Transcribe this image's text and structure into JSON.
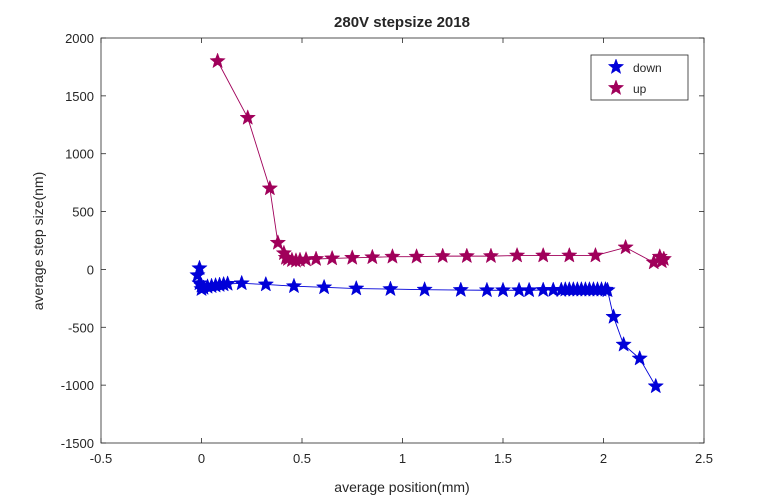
{
  "chart_data": {
    "type": "line",
    "title": "280V stepsize 2018",
    "xlabel": "average position(mm)",
    "ylabel": "average step size(nm)",
    "xlim": [
      -0.5,
      2.5
    ],
    "ylim": [
      -1500,
      2000
    ],
    "xticks": [
      -0.5,
      0,
      0.5,
      1,
      1.5,
      2,
      2.5
    ],
    "xtick_labels": [
      "-0.5",
      "0",
      "0.5",
      "1",
      "1.5",
      "2",
      "2.5"
    ],
    "yticks": [
      -1500,
      -1000,
      -500,
      0,
      500,
      1000,
      1500,
      2000
    ],
    "ytick_labels": [
      "-1500",
      "-1000",
      "-500",
      "0",
      "500",
      "1000",
      "1500",
      "2000"
    ],
    "grid": false,
    "legend_position": "top-right",
    "marker": "star",
    "series": [
      {
        "name": "down",
        "color": "#0000d8",
        "x": [
          2.26,
          2.18,
          2.1,
          2.05,
          2.02,
          2.01,
          1.99,
          1.97,
          1.95,
          1.93,
          1.91,
          1.89,
          1.87,
          1.85,
          1.83,
          1.81,
          1.79,
          1.75,
          1.7,
          1.63,
          1.58,
          1.5,
          1.42,
          1.29,
          1.11,
          0.94,
          0.77,
          0.61,
          0.46,
          0.32,
          0.2,
          0.13,
          0.11,
          0.09,
          0.07,
          0.05,
          0.03,
          0.01,
          0.0,
          -0.01,
          -0.02,
          -0.01,
          0.0
        ],
        "y": [
          -1010,
          -770,
          -650,
          -410,
          -180,
          -175,
          -175,
          -175,
          -175,
          -175,
          -175,
          -175,
          -175,
          -175,
          -175,
          -175,
          -178,
          -178,
          -178,
          -180,
          -180,
          -180,
          -180,
          -178,
          -175,
          -170,
          -165,
          -155,
          -145,
          -130,
          -120,
          -125,
          -130,
          -135,
          -140,
          -145,
          -150,
          -160,
          -170,
          -120,
          -50,
          10,
          -140
        ]
      },
      {
        "name": "up",
        "color": "#a0005a",
        "x": [
          0.08,
          0.23,
          0.34,
          0.38,
          0.41,
          0.42,
          0.43,
          0.45,
          0.47,
          0.49,
          0.52,
          0.57,
          0.65,
          0.75,
          0.85,
          0.95,
          1.07,
          1.2,
          1.32,
          1.44,
          1.57,
          1.7,
          1.83,
          1.96,
          2.11,
          2.25,
          2.28,
          2.29,
          2.3
        ],
        "y": [
          1800,
          1310,
          700,
          230,
          140,
          100,
          90,
          80,
          75,
          80,
          85,
          90,
          95,
          100,
          105,
          110,
          110,
          115,
          115,
          115,
          120,
          120,
          120,
          120,
          190,
          60,
          110,
          70,
          90
        ]
      }
    ]
  }
}
